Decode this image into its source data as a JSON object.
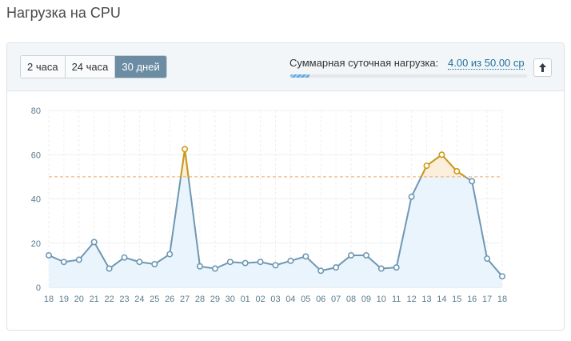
{
  "page": {
    "title": "Нагрузка на CPU"
  },
  "toolbar": {
    "tabs": [
      {
        "label": "2 часа",
        "active": false
      },
      {
        "label": "24 часа",
        "active": false
      },
      {
        "label": "30 дней",
        "active": true
      }
    ],
    "load_label": "Суммарная суточная нагрузка:",
    "load_value": "4.00 из 50.00 cp",
    "load_fraction": 0.08,
    "up_icon": "arrow-up-icon"
  },
  "colors": {
    "line": "#6f98b3",
    "area": "#eaf4fc",
    "over_line": "#d19a17",
    "over_area": "#fbefdc",
    "threshold": "#f0a96a",
    "grid": "#eceff1",
    "tab_active": "#6b8ca2"
  },
  "chart_data": {
    "type": "area",
    "title": "",
    "xlabel": "",
    "ylabel": "",
    "ylim": [
      0,
      80
    ],
    "yticks": [
      "0",
      "20",
      "40",
      "60",
      "80"
    ],
    "threshold": 50,
    "grid": true,
    "categories": [
      "18",
      "19",
      "20",
      "21",
      "22",
      "23",
      "24",
      "25",
      "26",
      "27",
      "28",
      "29",
      "30",
      "01",
      "02",
      "03",
      "04",
      "05",
      "06",
      "07",
      "08",
      "09",
      "10",
      "11",
      "12",
      "13",
      "14",
      "15",
      "16",
      "17",
      "18"
    ],
    "series": [
      {
        "values": [
          14.5,
          11.5,
          12.5,
          20.5,
          8.5,
          13.5,
          11.5,
          10.5,
          15,
          62.5,
          9.5,
          8.5,
          11.5,
          11,
          11.5,
          10,
          12,
          14,
          7.5,
          9,
          14.5,
          14.5,
          8.5,
          9,
          41,
          55,
          60,
          52.5,
          48,
          13,
          5
        ]
      }
    ]
  }
}
